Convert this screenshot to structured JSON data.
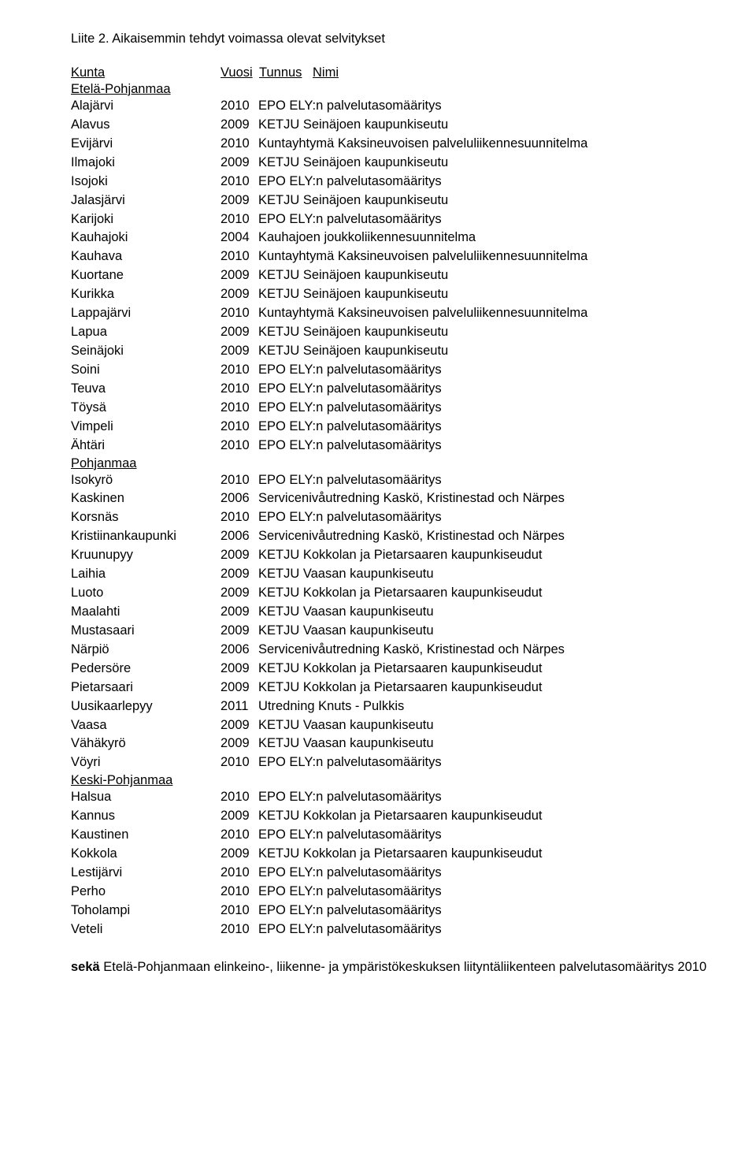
{
  "title": "Liite 2. Aikaisemmin tehdyt voimassa olevat selvitykset",
  "header": {
    "kunta": "Kunta",
    "vuosi": "Vuosi",
    "tunnus": "Tunnus",
    "nimi": "Nimi"
  },
  "regions": [
    {
      "name": "Etelä-Pohjanmaa",
      "rows": [
        {
          "k": "Alajärvi",
          "v": "2010",
          "n": "EPO ELY:n palvelutasomääritys"
        },
        {
          "k": "Alavus",
          "v": "2009",
          "n": "KETJU Seinäjoen kaupunkiseutu"
        },
        {
          "k": "Evijärvi",
          "v": "2010",
          "n": "Kuntayhtymä Kaksineuvoisen palveluliikennesuunnitelma"
        },
        {
          "k": "Ilmajoki",
          "v": "2009",
          "n": "KETJU Seinäjoen kaupunkiseutu"
        },
        {
          "k": "Isojoki",
          "v": "2010",
          "n": "EPO ELY:n palvelutasomääritys"
        },
        {
          "k": "Jalasjärvi",
          "v": "2009",
          "n": "KETJU Seinäjoen kaupunkiseutu"
        },
        {
          "k": "Karijoki",
          "v": "2010",
          "n": "EPO ELY:n palvelutasomääritys"
        },
        {
          "k": "Kauhajoki",
          "v": "2004",
          "n": "Kauhajoen joukkoliikennesuunnitelma"
        },
        {
          "k": "Kauhava",
          "v": "2010",
          "n": "Kuntayhtymä Kaksineuvoisen palveluliikennesuunnitelma"
        },
        {
          "k": "Kuortane",
          "v": "2009",
          "n": "KETJU Seinäjoen kaupunkiseutu"
        },
        {
          "k": "Kurikka",
          "v": "2009",
          "n": "KETJU Seinäjoen kaupunkiseutu"
        },
        {
          "k": "Lappajärvi",
          "v": "2010",
          "n": "Kuntayhtymä Kaksineuvoisen palveluliikennesuunnitelma"
        },
        {
          "k": "Lapua",
          "v": "2009",
          "n": "KETJU Seinäjoen kaupunkiseutu"
        },
        {
          "k": "Seinäjoki",
          "v": "2009",
          "n": "KETJU Seinäjoen kaupunkiseutu"
        },
        {
          "k": "Soini",
          "v": "2010",
          "n": "EPO ELY:n palvelutasomääritys"
        },
        {
          "k": "Teuva",
          "v": "2010",
          "n": "EPO ELY:n palvelutasomääritys"
        },
        {
          "k": "Töysä",
          "v": "2010",
          "n": "EPO ELY:n palvelutasomääritys"
        },
        {
          "k": "Vimpeli",
          "v": "2010",
          "n": "EPO ELY:n palvelutasomääritys"
        },
        {
          "k": "Ähtäri",
          "v": "2010",
          "n": "EPO ELY:n palvelutasomääritys"
        }
      ]
    },
    {
      "name": "Pohjanmaa",
      "rows": [
        {
          "k": "Isokyrö",
          "v": "2010",
          "n": "EPO ELY:n palvelutasomääritys"
        },
        {
          "k": "Kaskinen",
          "v": "2006",
          "n": "Servicenivåutredning Kaskö, Kristinestad och Närpes"
        },
        {
          "k": "Korsnäs",
          "v": "2010",
          "n": "EPO ELY:n palvelutasomääritys"
        },
        {
          "k": "Kristiinankaupunki",
          "v": "2006",
          "n": "Servicenivåutredning Kaskö, Kristinestad och Närpes"
        },
        {
          "k": "Kruunupyy",
          "v": "2009",
          "n": "KETJU Kokkolan ja Pietarsaaren kaupunkiseudut"
        },
        {
          "k": "Laihia",
          "v": "2009",
          "n": "KETJU Vaasan kaupunkiseutu"
        },
        {
          "k": "Luoto",
          "v": "2009",
          "n": "KETJU Kokkolan ja Pietarsaaren kaupunkiseudut"
        },
        {
          "k": "Maalahti",
          "v": "2009",
          "n": "KETJU Vaasan kaupunkiseutu"
        },
        {
          "k": "Mustasaari",
          "v": "2009",
          "n": "KETJU Vaasan kaupunkiseutu"
        },
        {
          "k": "Närpiö",
          "v": "2006",
          "n": "Servicenivåutredning Kaskö, Kristinestad och Närpes"
        },
        {
          "k": "Pedersöre",
          "v": "2009",
          "n": "KETJU Kokkolan ja Pietarsaaren kaupunkiseudut"
        },
        {
          "k": "Pietarsaari",
          "v": "2009",
          "n": "KETJU Kokkolan ja Pietarsaaren kaupunkiseudut"
        },
        {
          "k": "Uusikaarlepyy",
          "v": "2011",
          "n": "Utredning Knuts - Pulkkis"
        },
        {
          "k": "Vaasa",
          "v": "2009",
          "n": "KETJU Vaasan kaupunkiseutu"
        },
        {
          "k": "Vähäkyrö",
          "v": "2009",
          "n": "KETJU Vaasan kaupunkiseutu"
        },
        {
          "k": "Vöyri",
          "v": "2010",
          "n": "EPO ELY:n palvelutasomääritys"
        }
      ]
    },
    {
      "name": "Keski-Pohjanmaa",
      "rows": [
        {
          "k": "Halsua",
          "v": "2010",
          "n": "EPO ELY:n palvelutasomääritys"
        },
        {
          "k": "Kannus",
          "v": "2009",
          "n": "KETJU Kokkolan ja Pietarsaaren kaupunkiseudut"
        },
        {
          "k": "Kaustinen",
          "v": "2010",
          "n": "EPO ELY:n palvelutasomääritys"
        },
        {
          "k": "Kokkola",
          "v": "2009",
          "n": "KETJU Kokkolan ja Pietarsaaren kaupunkiseudut"
        },
        {
          "k": "Lestijärvi",
          "v": "2010",
          "n": "EPO ELY:n palvelutasomääritys"
        },
        {
          "k": "Perho",
          "v": "2010",
          "n": "EPO ELY:n palvelutasomääritys"
        },
        {
          "k": "Toholampi",
          "v": "2010",
          "n": "EPO ELY:n palvelutasomääritys"
        },
        {
          "k": "Veteli",
          "v": "2010",
          "n": "EPO ELY:n palvelutasomääritys"
        }
      ]
    }
  ],
  "footer": {
    "seka": "sekä",
    "rest": " Etelä-Pohjanmaan elinkeino-, liikenne- ja ympäristökeskuksen liityntäliikenteen palvelutasomääritys 2010"
  }
}
